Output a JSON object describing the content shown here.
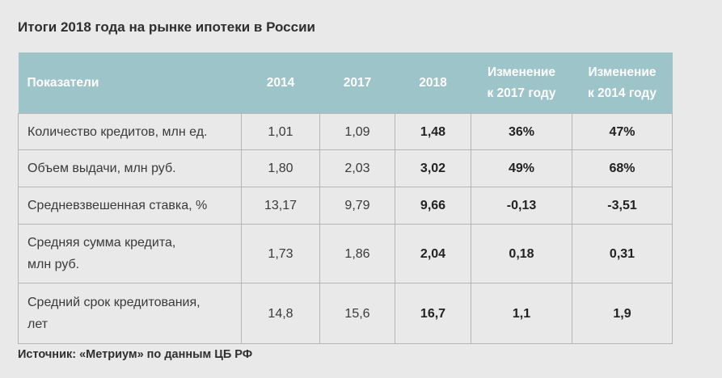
{
  "header": {
    "title": "Итоги 2018 года на рынке ипотеки в России"
  },
  "table": {
    "columns": [
      [
        "Показатели"
      ],
      [
        "2014"
      ],
      [
        "2017"
      ],
      [
        "2018"
      ],
      [
        "Изменение",
        "к 2017 году"
      ],
      [
        "Изменение",
        "к 2014 году"
      ]
    ],
    "rows": [
      [
        [
          "Количество кредитов, млн ед."
        ],
        "1,01",
        "1,09",
        "1,48",
        "36%",
        "47%"
      ],
      [
        [
          "Объем выдачи, млн руб."
        ],
        "1,80",
        "2,03",
        "3,02",
        "49%",
        "68%"
      ],
      [
        [
          "Средневзвешенная ставка, %"
        ],
        "13,17",
        "9,79",
        "9,66",
        "-0,13",
        "-3,51"
      ],
      [
        [
          "Средняя сумма кредита,",
          "млн руб."
        ],
        "1,73",
        "1,86",
        "2,04",
        "0,18",
        "0,31"
      ],
      [
        [
          "Средний срок кредитования,",
          "лет"
        ],
        "14,8",
        "15,6",
        "16,7",
        "1,1",
        "1,9"
      ]
    ]
  },
  "footer": {
    "source": "Источник: «Метриум» по данным ЦБ РФ"
  }
}
